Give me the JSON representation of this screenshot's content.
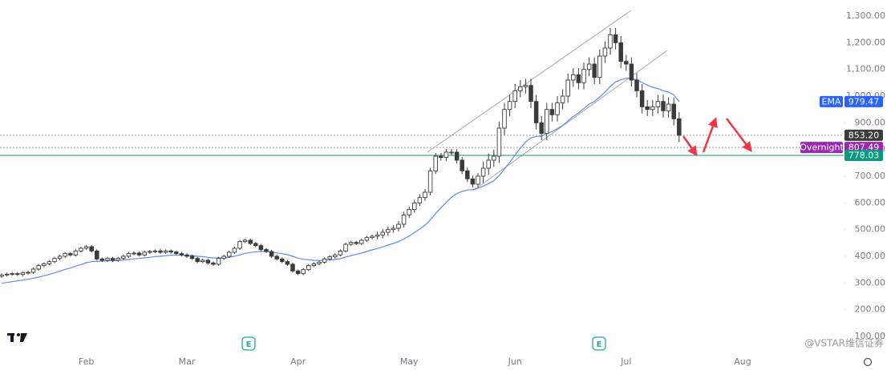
{
  "chart_data": {
    "type": "candlestick",
    "categories": [
      null,
      null,
      null,
      null,
      null,
      null,
      null,
      null,
      null,
      null,
      null,
      null,
      null,
      null,
      null,
      null,
      "Feb",
      null,
      null,
      null,
      null,
      null,
      null,
      null,
      null,
      null,
      null,
      null,
      null,
      null,
      null,
      null,
      null,
      null,
      null,
      "Mar",
      null,
      null,
      null,
      null,
      null,
      null,
      null,
      null,
      null,
      null,
      null,
      null,
      null,
      null,
      null,
      null,
      null,
      null,
      null,
      null,
      "Apr",
      null,
      null,
      null,
      null,
      null,
      null,
      null,
      null,
      null,
      null,
      null,
      null,
      null,
      null,
      null,
      null,
      null,
      null,
      null,
      null,
      "May",
      null,
      null,
      null,
      null,
      null,
      null,
      null,
      null,
      null,
      null,
      null,
      null,
      null,
      null,
      null,
      null,
      null,
      null,
      null,
      "Jun",
      null,
      null,
      null,
      null,
      null,
      null,
      null,
      null,
      null,
      null,
      null,
      null,
      null,
      null,
      null,
      null,
      null,
      null,
      null,
      null,
      "Jul",
      null,
      null,
      null,
      null,
      null,
      null,
      null,
      null,
      null,
      null,
      null,
      null,
      null,
      null,
      null,
      null,
      null,
      null,
      null,
      null,
      null,
      "Aug"
    ],
    "open": [
      325,
      330,
      333,
      335,
      332,
      338,
      340,
      352,
      365,
      372,
      380,
      392,
      400,
      410,
      405,
      420,
      430,
      436,
      420,
      390,
      385,
      392,
      385,
      392,
      400,
      410,
      412,
      405,
      415,
      418,
      420,
      415,
      420,
      416,
      410,
      405,
      400,
      392,
      380,
      385,
      375,
      370,
      392,
      400,
      415,
      430,
      455,
      460,
      448,
      440,
      425,
      418,
      400,
      390,
      380,
      370,
      345,
      335,
      350,
      365,
      372,
      378,
      390,
      398,
      405,
      420,
      445,
      452,
      448,
      460,
      470,
      475,
      480,
      490,
      500,
      505,
      520,
      555,
      575,
      600,
      620,
      640,
      720,
      775,
      770,
      790,
      790,
      760,
      720,
      690,
      670,
      700,
      730,
      760,
      775,
      880,
      950,
      980,
      1020,
      1035,
      1040,
      980,
      900,
      860,
      950,
      930,
      975,
      1000,
      1060,
      1080,
      1050,
      1100,
      1120,
      1070,
      1150,
      1180,
      1230,
      1200,
      1130,
      1120,
      1060,
      1020,
      960,
      950,
      960,
      980,
      945,
      970,
      915,
      null,
      null,
      null,
      null,
      null,
      null,
      null,
      null,
      null,
      null,
      null,
      null
    ],
    "high": [
      336,
      339,
      341,
      341,
      344,
      346,
      358,
      371,
      378,
      386,
      398,
      406,
      416,
      416,
      426,
      436,
      442,
      442,
      426,
      396,
      398,
      398,
      398,
      406,
      416,
      418,
      418,
      421,
      424,
      426,
      426,
      426,
      426,
      422,
      416,
      411,
      406,
      398,
      391,
      391,
      381,
      398,
      406,
      421,
      436,
      461,
      466,
      466,
      454,
      446,
      431,
      424,
      406,
      396,
      386,
      376,
      351,
      356,
      371,
      378,
      384,
      396,
      404,
      411,
      426,
      451,
      458,
      458,
      466,
      476,
      481,
      492,
      502,
      512,
      517,
      532,
      567,
      587,
      612,
      632,
      652,
      732,
      787,
      787,
      802,
      802,
      802,
      772,
      732,
      702,
      712,
      755,
      785,
      800,
      905,
      975,
      1005,
      1045,
      1060,
      1065,
      1065,
      1005,
      925,
      975,
      975,
      1000,
      1025,
      1085,
      1105,
      1105,
      1125,
      1145,
      1145,
      1175,
      1205,
      1255,
      1255,
      1225,
      1155,
      1145,
      1085,
      1045,
      985,
      985,
      1005,
      1005,
      995,
      995,
      940,
      null,
      null,
      null,
      null,
      null,
      null,
      null,
      null,
      null,
      null,
      null,
      null
    ],
    "low": [
      319,
      324,
      327,
      326,
      326,
      332,
      334,
      346,
      359,
      366,
      374,
      386,
      394,
      399,
      399,
      414,
      424,
      414,
      384,
      379,
      379,
      379,
      379,
      386,
      394,
      404,
      399,
      399,
      409,
      412,
      409,
      409,
      410,
      404,
      399,
      394,
      386,
      374,
      374,
      369,
      364,
      364,
      386,
      394,
      409,
      424,
      449,
      442,
      434,
      419,
      412,
      394,
      384,
      374,
      364,
      339,
      329,
      329,
      344,
      359,
      366,
      372,
      384,
      392,
      399,
      414,
      439,
      442,
      442,
      454,
      464,
      463,
      468,
      478,
      488,
      493,
      508,
      543,
      563,
      588,
      608,
      628,
      708,
      758,
      758,
      778,
      748,
      708,
      678,
      658,
      658,
      675,
      705,
      735,
      750,
      855,
      925,
      955,
      995,
      1010,
      955,
      875,
      835,
      835,
      905,
      905,
      950,
      975,
      1035,
      1025,
      1025,
      1075,
      1045,
      1045,
      1125,
      1155,
      1175,
      1105,
      1095,
      1035,
      995,
      935,
      925,
      925,
      935,
      920,
      920,
      890,
      828,
      null,
      null,
      null,
      null,
      null,
      null,
      null,
      null,
      null,
      null,
      null,
      null
    ],
    "close": [
      330,
      333,
      335,
      332,
      338,
      340,
      352,
      365,
      372,
      380,
      392,
      400,
      410,
      405,
      420,
      430,
      436,
      420,
      390,
      385,
      392,
      385,
      392,
      400,
      410,
      412,
      405,
      415,
      418,
      420,
      415,
      420,
      416,
      410,
      405,
      400,
      392,
      380,
      385,
      375,
      370,
      392,
      400,
      415,
      430,
      455,
      460,
      448,
      440,
      425,
      418,
      400,
      390,
      380,
      370,
      345,
      335,
      350,
      365,
      372,
      378,
      390,
      398,
      405,
      420,
      445,
      452,
      448,
      460,
      470,
      475,
      480,
      490,
      500,
      505,
      520,
      555,
      575,
      600,
      620,
      640,
      720,
      775,
      770,
      790,
      790,
      760,
      720,
      690,
      670,
      700,
      730,
      760,
      775,
      880,
      950,
      980,
      1020,
      1035,
      1040,
      980,
      900,
      860,
      950,
      930,
      975,
      1000,
      1060,
      1080,
      1050,
      1100,
      1120,
      1070,
      1150,
      1180,
      1230,
      1200,
      1130,
      1120,
      1060,
      1020,
      960,
      950,
      960,
      980,
      945,
      970,
      915,
      853.2,
      null,
      null,
      null,
      null,
      null,
      null,
      null,
      null,
      null,
      null,
      null,
      null
    ],
    "up_color": "#ffffff",
    "down_color": "#3a3a3a",
    "series": [
      {
        "name": "EMA",
        "color": "#5b8def",
        "label_color": "#2962ff",
        "values": [
          298.5,
          302,
          305,
          308,
          311,
          314,
          318,
          322,
          327,
          332,
          338,
          344,
          351,
          356,
          363,
          369,
          376,
          380,
          381,
          382,
          383,
          383,
          384,
          386,
          388,
          390,
          392,
          394,
          396,
          399,
          400,
          402,
          404,
          404,
          404,
          404,
          403,
          400,
          399,
          396,
          394,
          394,
          394,
          396,
          400,
          405,
          411,
          414,
          417,
          418,
          418,
          416,
          413,
          410,
          406,
          400,
          393,
          389,
          387,
          385,
          384,
          385,
          386,
          388,
          391,
          397,
          402,
          407,
          412,
          418,
          424,
          429,
          435,
          442,
          448,
          455,
          465,
          476,
          489,
          502,
          516,
          536,
          560,
          581,
          602,
          621,
          635,
          643,
          648,
          650,
          655,
          663,
          672,
          683,
          702,
          727,
          752,
          779,
          805,
          828,
          843,
          849,
          850,
          860,
          867,
          878,
          890,
          907,
          924,
          937,
          953,
          970,
          980,
          997,
          1015,
          1037,
          1053,
          1061,
          1067,
          1066,
          1061,
          1051,
          1041,
          1033,
          1028,
          1020,
          1015,
          1005,
          979.47,
          null,
          null,
          null,
          null,
          null,
          null,
          null,
          null,
          null,
          null,
          null,
          null
        ]
      }
    ],
    "price_lines": [
      {
        "value": 853.2,
        "label": "853.20",
        "color": "#3c3c3c",
        "style": "dotted"
      },
      {
        "name": "Overnight",
        "value": 807.49,
        "color": "#9c27b0",
        "style": "dotted"
      },
      {
        "value": 778.03,
        "color": "#089981",
        "style": "solid"
      }
    ],
    "ylim": [
      40,
      1360
    ],
    "yticks": [
      {
        "value": 1300,
        "label": "1,300.00"
      },
      {
        "value": 1200,
        "label": "1,200.00"
      },
      {
        "value": 1100,
        "label": "1,100.00"
      },
      {
        "value": 1000,
        "label": "1,000.00"
      },
      {
        "value": 900,
        "label": "900.00"
      },
      {
        "value": 800,
        "label": "800.00"
      },
      {
        "value": 700,
        "label": "700.00"
      },
      {
        "value": 600,
        "label": "600.00"
      },
      {
        "value": 500,
        "label": "500.00"
      },
      {
        "value": 400,
        "label": "400.00"
      },
      {
        "value": 300,
        "label": "300.00"
      },
      {
        "value": 200,
        "label": "200.00"
      },
      {
        "value": 100,
        "label": "100.00"
      }
    ],
    "earnings_marker": "E",
    "watermark": "@VSTAR维信证券"
  }
}
